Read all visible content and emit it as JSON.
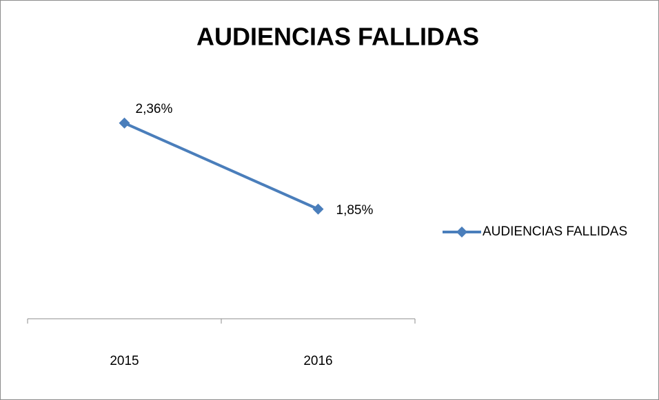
{
  "chart_data": {
    "type": "line",
    "title": "AUDIENCIAS FALLIDAS",
    "categories": [
      "2015",
      "2016"
    ],
    "series": [
      {
        "name": "AUDIENCIAS FALLIDAS",
        "color": "#4a7ebb",
        "values": [
          2.36,
          1.85
        ],
        "value_labels": [
          "2,36%",
          "1,85%"
        ]
      }
    ],
    "ylim": [
      1.2,
      2.6
    ],
    "legend": "right"
  }
}
